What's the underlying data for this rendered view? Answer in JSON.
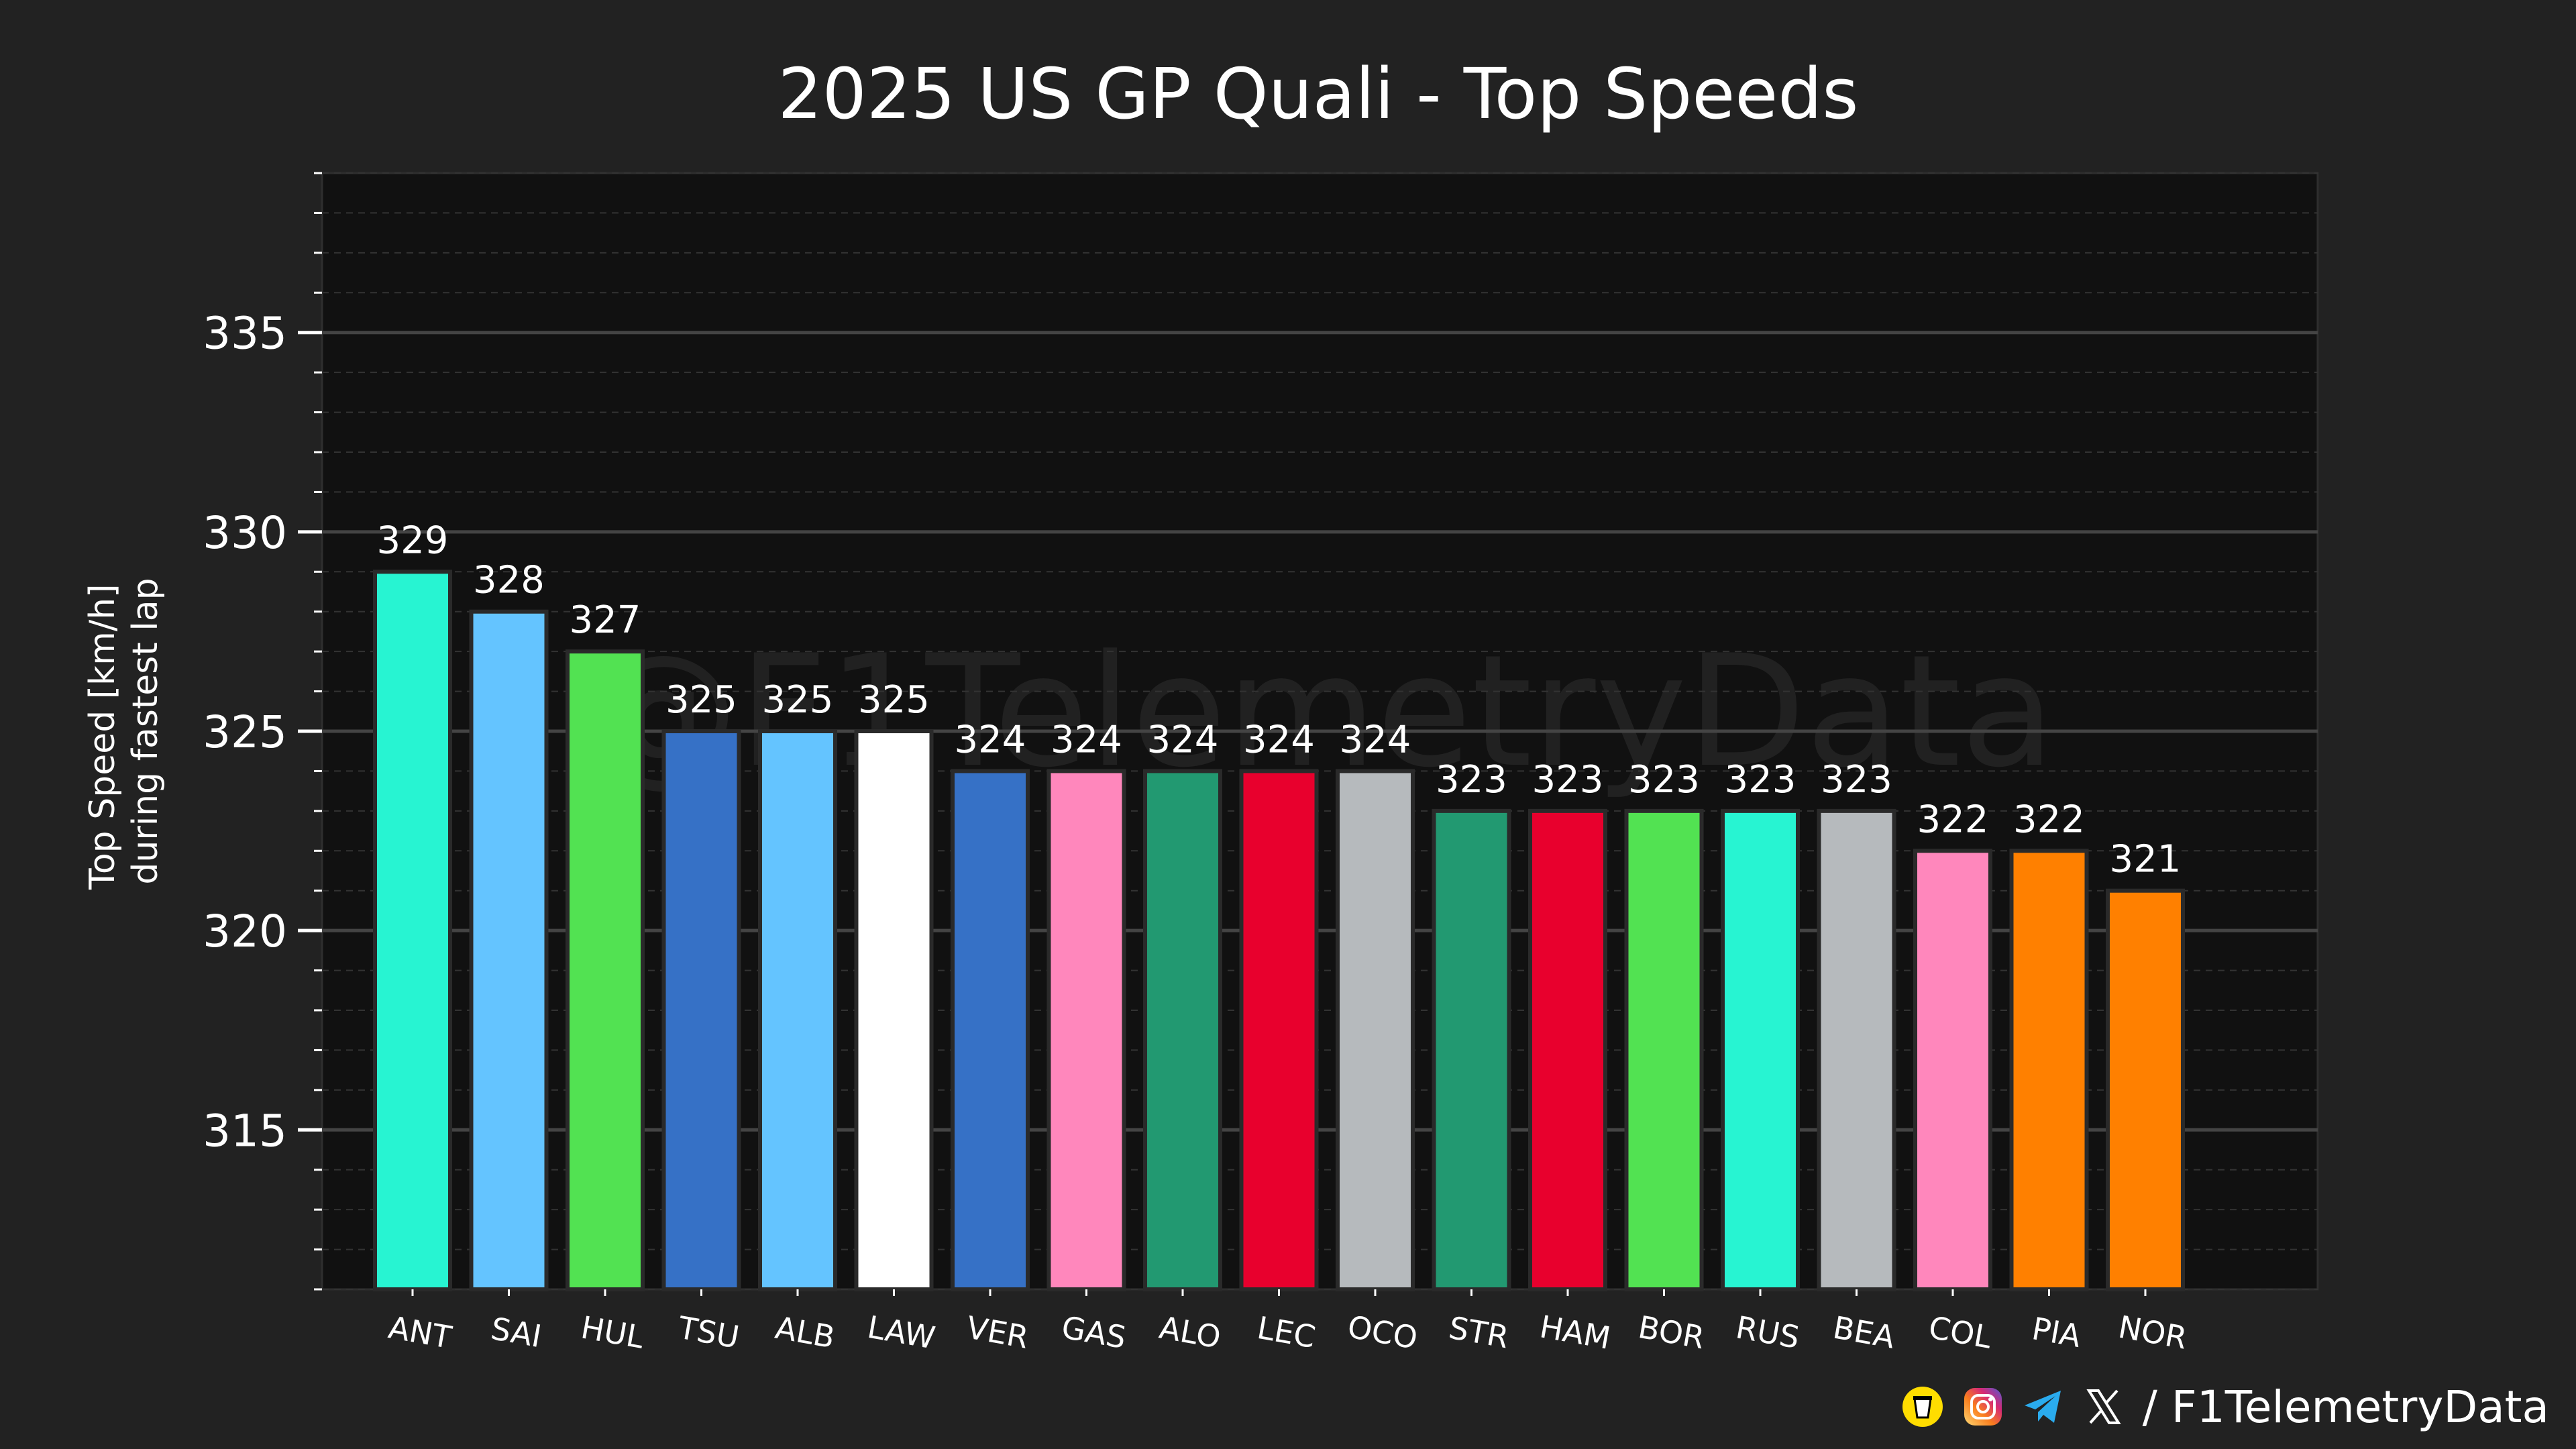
{
  "chart_data": {
    "type": "bar",
    "title": "2025 US GP Quali - Top Speeds",
    "xlabel": "",
    "ylabel": [
      "Top Speed [km/h]",
      "during fastest lap"
    ],
    "ylim": [
      311,
      339
    ],
    "yticks": [
      315,
      320,
      325,
      330,
      335
    ],
    "grid": true,
    "categories": [
      "ANT",
      "SAI",
      "HUL",
      "TSU",
      "ALB",
      "LAW",
      "VER",
      "GAS",
      "ALO",
      "LEC",
      "OCO",
      "STR",
      "HAM",
      "BOR",
      "RUS",
      "BEA",
      "COL",
      "PIA",
      "NOR"
    ],
    "values": [
      329,
      328,
      327,
      325,
      325,
      325,
      324,
      324,
      324,
      324,
      324,
      323,
      323,
      323,
      323,
      323,
      322,
      322,
      321
    ],
    "colors": [
      "#27F4D2",
      "#64C4FF",
      "#52E252",
      "#3671C6",
      "#64C4FF",
      "#FFFFFF",
      "#3671C6",
      "#FF87BC",
      "#229971",
      "#E8002D",
      "#B6BABD",
      "#229971",
      "#E8002D",
      "#52E252",
      "#27F4D2",
      "#B6BABD",
      "#FF87BC",
      "#FF8000",
      "#FF8000"
    ]
  },
  "watermark": "@F1TelemetryData",
  "footer": {
    "handle": "/ F1TelemetryData",
    "icons": [
      "buymeacoffee-icon",
      "instagram-icon",
      "telegram-icon",
      "x-icon"
    ]
  },
  "colors": {
    "background": "#222222",
    "plot_background": "#111111",
    "grid_major": "#444444",
    "grid_minor": "#333333"
  }
}
